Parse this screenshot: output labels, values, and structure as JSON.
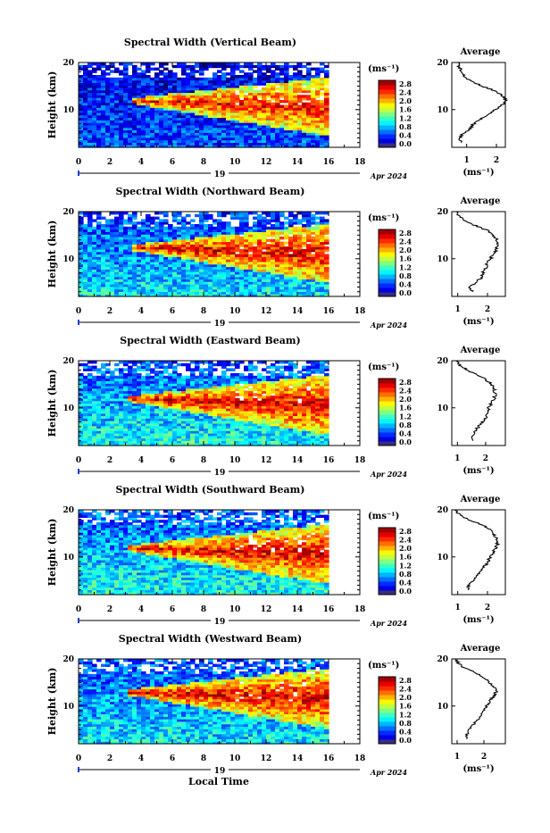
{
  "figure": {
    "xlabel": "Local Time",
    "date_day": "19",
    "date_label": "Apr 2024"
  },
  "colorbar": {
    "unit": "(ms⁻¹)",
    "ticks": [
      "2.8",
      "2.4",
      "2.0",
      "1.6",
      "1.2",
      "0.8",
      "0.4",
      "0.0"
    ]
  },
  "average_panel": {
    "title": "Average",
    "xlabel": "(ms⁻¹)"
  },
  "chart_data": [
    {
      "type": "heatmap",
      "title": "Spectral Width (Vertical Beam)",
      "ylabel": "Height (km)",
      "xlabel": "Local Time",
      "x_ticks": [
        "0",
        "2",
        "4",
        "6",
        "8",
        "10",
        "12",
        "14",
        "16",
        "18"
      ],
      "y_ticks": [
        "20",
        "10"
      ],
      "xlim": [
        0,
        18
      ],
      "ylim": [
        2,
        20
      ],
      "value_range": [
        0.0,
        3.0
      ],
      "colorscale": "jet",
      "features": {
        "core_height_km": 11.5,
        "core_start_h": 3.5,
        "core_value": 2.6,
        "background_low": 0.6,
        "background_high": 0.3
      },
      "average_profile": {
        "x_ticks": [
          "1",
          "2"
        ],
        "xlim": [
          0.5,
          2.3
        ],
        "heights_km": [
          3,
          4,
          5,
          6,
          7,
          8,
          9,
          10,
          11,
          12,
          13,
          14,
          15,
          16,
          17,
          18,
          19,
          20
        ],
        "values": [
          0.8,
          0.75,
          0.9,
          1.1,
          1.25,
          1.45,
          1.7,
          1.95,
          2.2,
          2.3,
          2.2,
          1.95,
          1.5,
          1.15,
          0.95,
          0.85,
          0.75,
          0.7
        ]
      }
    },
    {
      "type": "heatmap",
      "title": "Spectral Width (Northward Beam)",
      "ylabel": "Height (km)",
      "xlabel": "Local Time",
      "x_ticks": [
        "0",
        "2",
        "4",
        "6",
        "8",
        "10",
        "12",
        "14",
        "16",
        "18"
      ],
      "y_ticks": [
        "20",
        "10"
      ],
      "xlim": [
        0,
        18
      ],
      "ylim": [
        2,
        20
      ],
      "value_range": [
        0.0,
        3.0
      ],
      "colorscale": "jet",
      "features": {
        "core_height_km": 12.0,
        "core_start_h": 3.5,
        "core_value": 2.7,
        "background_low": 1.1,
        "background_high": 0.5
      },
      "average_profile": {
        "x_ticks": [
          "1",
          "2"
        ],
        "xlim": [
          0.8,
          2.6
        ],
        "heights_km": [
          3,
          4,
          5,
          6,
          7,
          8,
          9,
          10,
          11,
          12,
          13,
          14,
          15,
          16,
          17,
          18,
          19,
          20
        ],
        "values": [
          1.5,
          1.4,
          1.6,
          1.8,
          1.85,
          1.95,
          2.0,
          2.1,
          2.2,
          2.3,
          2.35,
          2.3,
          2.2,
          2.0,
          1.6,
          1.25,
          1.05,
          0.95
        ]
      }
    },
    {
      "type": "heatmap",
      "title": "Spectral Width (Eastward Beam)",
      "ylabel": "Height (km)",
      "xlabel": "Local Time",
      "x_ticks": [
        "0",
        "2",
        "4",
        "6",
        "8",
        "10",
        "12",
        "14",
        "16",
        "18"
      ],
      "y_ticks": [
        "20",
        "10"
      ],
      "xlim": [
        0,
        18
      ],
      "ylim": [
        2,
        20
      ],
      "value_range": [
        0.0,
        3.0
      ],
      "colorscale": "jet",
      "features": {
        "core_height_km": 11.5,
        "core_start_h": 3.2,
        "core_value": 2.7,
        "background_low": 1.2,
        "background_high": 0.6
      },
      "average_profile": {
        "x_ticks": [
          "1",
          "2"
        ],
        "xlim": [
          0.8,
          2.7
        ],
        "heights_km": [
          3,
          4,
          5,
          6,
          7,
          8,
          9,
          10,
          11,
          12,
          13,
          14,
          15,
          16,
          17,
          18,
          19,
          20
        ],
        "values": [
          1.55,
          1.5,
          1.6,
          1.75,
          1.9,
          2.0,
          2.05,
          2.1,
          2.2,
          2.3,
          2.35,
          2.3,
          2.2,
          2.0,
          1.7,
          1.35,
          1.1,
          0.95
        ]
      }
    },
    {
      "type": "heatmap",
      "title": "Spectral Width (Southward Beam)",
      "ylabel": "Height (km)",
      "xlabel": "Local Time",
      "x_ticks": [
        "0",
        "2",
        "4",
        "6",
        "8",
        "10",
        "12",
        "14",
        "16",
        "18"
      ],
      "y_ticks": [
        "20",
        "10"
      ],
      "xlim": [
        0,
        18
      ],
      "ylim": [
        2,
        20
      ],
      "value_range": [
        0.0,
        3.0
      ],
      "colorscale": "jet",
      "features": {
        "core_height_km": 11.5,
        "core_start_h": 3.2,
        "core_value": 2.7,
        "background_low": 1.2,
        "background_high": 0.6
      },
      "average_profile": {
        "x_ticks": [
          "1",
          "2"
        ],
        "xlim": [
          0.8,
          2.6
        ],
        "heights_km": [
          3,
          4,
          5,
          6,
          7,
          8,
          9,
          10,
          11,
          12,
          13,
          14,
          15,
          16,
          17,
          18,
          19,
          20
        ],
        "values": [
          1.4,
          1.35,
          1.5,
          1.65,
          1.8,
          1.9,
          2.0,
          2.1,
          2.2,
          2.3,
          2.35,
          2.3,
          2.2,
          2.05,
          1.75,
          1.35,
          1.05,
          0.9
        ]
      }
    },
    {
      "type": "heatmap",
      "title": "Spectral Width (Westward Beam)",
      "ylabel": "Height (km)",
      "xlabel": "Local Time",
      "x_ticks": [
        "0",
        "2",
        "4",
        "6",
        "8",
        "10",
        "12",
        "14",
        "16",
        "18"
      ],
      "y_ticks": [
        "20",
        "10"
      ],
      "xlim": [
        0,
        18
      ],
      "ylim": [
        2,
        20
      ],
      "value_range": [
        0.0,
        3.0
      ],
      "colorscale": "jet",
      "features": {
        "core_height_km": 12.5,
        "core_start_h": 3.2,
        "core_value": 2.7,
        "background_low": 1.1,
        "background_high": 0.6
      },
      "average_profile": {
        "x_ticks": [
          "1",
          "2"
        ],
        "xlim": [
          0.8,
          2.8
        ],
        "heights_km": [
          3,
          4,
          5,
          6,
          7,
          8,
          9,
          10,
          11,
          12,
          13,
          14,
          15,
          16,
          17,
          18,
          19,
          20
        ],
        "values": [
          1.4,
          1.35,
          1.45,
          1.6,
          1.75,
          1.9,
          2.0,
          2.1,
          2.2,
          2.35,
          2.45,
          2.4,
          2.2,
          2.0,
          1.7,
          1.3,
          1.05,
          0.95
        ]
      }
    }
  ]
}
